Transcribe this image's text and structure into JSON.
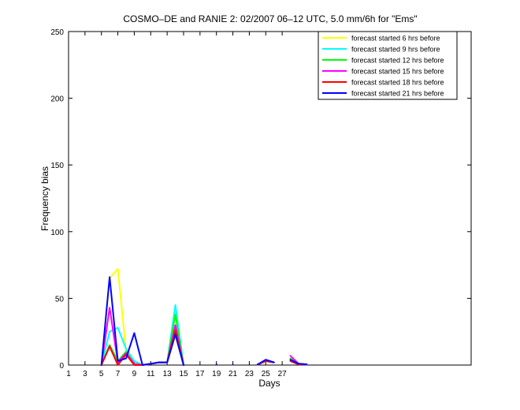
{
  "chart_data": {
    "type": "line",
    "title": "COSMO–DE and RANIE 2: 02/2007 06–12 UTC, 5.0 mm/6h for \"Ems\"",
    "xlabel": "Days",
    "ylabel": "Frequency bias",
    "xlim": [
      1,
      50
    ],
    "ylim": [
      0,
      250
    ],
    "x_ticks": [
      1,
      3,
      5,
      7,
      9,
      11,
      13,
      15,
      17,
      19,
      21,
      23,
      25,
      27
    ],
    "y_ticks": [
      0,
      50,
      100,
      150,
      200,
      250
    ],
    "grid": false,
    "legend_position": "top-right",
    "x": [
      1,
      2,
      3,
      4,
      5,
      6,
      7,
      8,
      9,
      10,
      11,
      12,
      13,
      14,
      15,
      16,
      17,
      18,
      19,
      20,
      21,
      22,
      23,
      24,
      25,
      26,
      27,
      28,
      29,
      30
    ],
    "series": [
      {
        "name": "forecast started 6 hrs before",
        "color": "#ffff00",
        "values": [
          null,
          null,
          null,
          null,
          0,
          65,
          72,
          10,
          1,
          0,
          1,
          2,
          2,
          22,
          0,
          null,
          null,
          null,
          0.5,
          null,
          0.3,
          null,
          null,
          0.4,
          3,
          2,
          null,
          5,
          1,
          0.5
        ]
      },
      {
        "name": "forecast started 9 hrs before",
        "color": "#00ffff",
        "values": [
          null,
          null,
          null,
          null,
          0,
          25,
          28,
          12,
          3,
          0,
          1,
          2,
          2,
          45,
          0,
          null,
          null,
          null,
          0.5,
          null,
          0.3,
          null,
          null,
          0.4,
          3,
          2,
          null,
          5,
          1,
          0.5
        ]
      },
      {
        "name": "forecast started 12 hrs before",
        "color": "#00ff00",
        "values": [
          null,
          null,
          null,
          null,
          0,
          15,
          3,
          10,
          1,
          0,
          1,
          2,
          2,
          38,
          0,
          null,
          null,
          null,
          0.5,
          null,
          0.3,
          null,
          null,
          0.4,
          3,
          2,
          null,
          5,
          1,
          0.5
        ]
      },
      {
        "name": "forecast started 15 hrs before",
        "color": "#ff00ff",
        "values": [
          null,
          null,
          null,
          null,
          0,
          43,
          2,
          9,
          1,
          0,
          1,
          2,
          2,
          30,
          0,
          null,
          null,
          null,
          0.5,
          null,
          0.3,
          null,
          null,
          0.4,
          3,
          2,
          null,
          7,
          1,
          0.5
        ]
      },
      {
        "name": "forecast started 18 hrs before",
        "color": "#ff0000",
        "values": [
          null,
          null,
          null,
          null,
          0,
          14,
          0,
          8,
          0,
          0,
          1,
          2,
          2,
          26,
          0,
          null,
          null,
          null,
          0.5,
          null,
          0.3,
          null,
          null,
          0.4,
          3,
          2,
          null,
          3,
          0.5,
          0.5
        ]
      },
      {
        "name": "forecast started 21 hrs before",
        "color": "#0000ff",
        "values": [
          null,
          null,
          null,
          null,
          0,
          66,
          3,
          5,
          24,
          0,
          1,
          2,
          2,
          23,
          0,
          null,
          null,
          null,
          0.5,
          null,
          0.3,
          null,
          null,
          0.4,
          4,
          2,
          null,
          4,
          1,
          0.5
        ]
      }
    ]
  }
}
